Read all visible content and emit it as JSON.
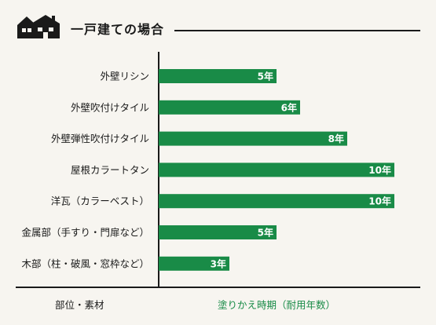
{
  "title": "一戸建ての場合",
  "icon": "houses-icon",
  "colors": {
    "bar": "#198b47",
    "text": "#1a1a1a",
    "accent": "#198b47",
    "background": "#f7f5f0"
  },
  "footer": {
    "left": "部位・素材",
    "right": "塗りかえ時期（耐用年数）"
  },
  "chart_data": {
    "type": "bar",
    "orientation": "horizontal",
    "categories": [
      "外壁リシン",
      "外壁吹付けタイル",
      "外壁弾性吹付けタイル",
      "屋根カラートタン",
      "洋瓦（カラーベスト）",
      "金属部（手すり・門扉など）",
      "木部（柱・破風・窓枠など）"
    ],
    "values": [
      5,
      6,
      8,
      10,
      10,
      5,
      3
    ],
    "data_labels": [
      "5年",
      "6年",
      "8年",
      "10年",
      "10年",
      "5年",
      "3年"
    ],
    "xlabel": "塗りかえ時期（耐用年数）",
    "ylabel": "部位・素材",
    "xlim": [
      0,
      10
    ]
  }
}
